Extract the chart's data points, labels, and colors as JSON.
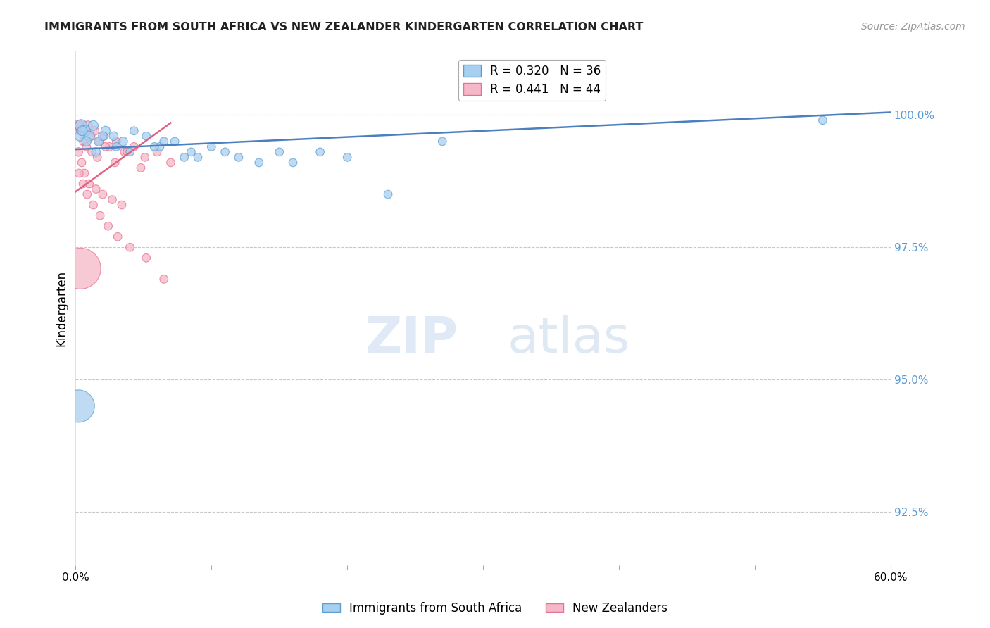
{
  "title": "IMMIGRANTS FROM SOUTH AFRICA VS NEW ZEALANDER KINDERGARTEN CORRELATION CHART",
  "source": "Source: ZipAtlas.com",
  "ylabel": "Kindergarten",
  "ylabel_right_ticks": [
    100.0,
    97.5,
    95.0,
    92.5
  ],
  "ylabel_right_labels": [
    "100.0%",
    "97.5%",
    "95.0%",
    "92.5%"
  ],
  "xmin": 0.0,
  "xmax": 60.0,
  "ymin": 91.5,
  "ymax": 101.2,
  "blue_R": 0.32,
  "blue_N": 36,
  "pink_R": 0.441,
  "pink_N": 44,
  "blue_color": "#a8cff0",
  "pink_color": "#f5b8c8",
  "blue_edge_color": "#5a9fd4",
  "pink_edge_color": "#e87090",
  "blue_line_color": "#4a7fc0",
  "pink_line_color": "#e06080",
  "legend_blue_label": "Immigrants from South Africa",
  "legend_pink_label": "New Zealanders",
  "watermark_zip": "ZIP",
  "watermark_atlas": "atlas",
  "background_color": "#ffffff",
  "grid_color": "#c8c8c8",
  "right_axis_color": "#5b9bd5",
  "xtick_labels": [
    "0.0%",
    "",
    "",
    "",
    "",
    "",
    "60.0%"
  ],
  "blue_scatter_x": [
    0.4,
    0.7,
    1.0,
    1.3,
    1.7,
    2.2,
    2.8,
    3.5,
    4.3,
    5.2,
    6.2,
    7.3,
    8.5,
    10.0,
    12.0,
    15.0,
    16.0,
    18.0,
    20.0,
    23.0,
    27.0,
    55.0,
    1.5,
    5.8,
    9.0,
    13.5,
    0.3,
    0.5,
    0.8,
    2.0,
    3.0,
    4.0,
    6.5,
    8.0,
    11.0,
    0.2
  ],
  "blue_scatter_y": [
    99.8,
    99.7,
    99.6,
    99.8,
    99.5,
    99.7,
    99.6,
    99.5,
    99.7,
    99.6,
    99.4,
    99.5,
    99.3,
    99.4,
    99.2,
    99.3,
    99.1,
    99.3,
    99.2,
    98.5,
    99.5,
    99.9,
    99.3,
    99.4,
    99.2,
    99.1,
    99.6,
    99.7,
    99.5,
    99.6,
    99.4,
    99.3,
    99.5,
    99.2,
    99.3,
    94.5
  ],
  "blue_scatter_s": [
    30,
    25,
    22,
    20,
    18,
    18,
    16,
    16,
    14,
    14,
    14,
    14,
    14,
    14,
    14,
    14,
    14,
    14,
    14,
    14,
    14,
    14,
    16,
    14,
    14,
    14,
    20,
    20,
    18,
    16,
    14,
    14,
    14,
    14,
    14,
    220
  ],
  "pink_scatter_x": [
    0.15,
    0.3,
    0.5,
    0.7,
    0.9,
    1.1,
    1.4,
    1.7,
    2.1,
    2.5,
    3.0,
    3.6,
    4.3,
    5.1,
    6.0,
    7.0,
    0.4,
    0.6,
    0.8,
    1.2,
    1.6,
    2.2,
    2.9,
    3.8,
    4.8,
    0.2,
    0.45,
    0.65,
    1.0,
    1.5,
    2.0,
    2.7,
    3.4,
    0.25,
    0.55,
    0.85,
    1.3,
    1.8,
    2.4,
    3.1,
    4.0,
    5.2,
    0.35,
    6.5
  ],
  "pink_scatter_y": [
    99.8,
    99.8,
    99.7,
    99.7,
    99.8,
    99.6,
    99.7,
    99.5,
    99.6,
    99.4,
    99.5,
    99.3,
    99.4,
    99.2,
    99.3,
    99.1,
    99.7,
    99.5,
    99.4,
    99.3,
    99.2,
    99.4,
    99.1,
    99.3,
    99.0,
    99.3,
    99.1,
    98.9,
    98.7,
    98.6,
    98.5,
    98.4,
    98.3,
    98.9,
    98.7,
    98.5,
    98.3,
    98.1,
    97.9,
    97.7,
    97.5,
    97.3,
    97.1,
    96.9
  ],
  "pink_scatter_s": [
    25,
    22,
    20,
    18,
    18,
    16,
    16,
    14,
    14,
    14,
    14,
    14,
    14,
    14,
    14,
    14,
    18,
    16,
    14,
    14,
    14,
    14,
    14,
    14,
    14,
    16,
    14,
    14,
    14,
    14,
    14,
    14,
    14,
    14,
    14,
    14,
    14,
    14,
    14,
    14,
    14,
    14,
    350,
    14
  ],
  "blue_line_x": [
    0.0,
    60.0
  ],
  "blue_line_y": [
    99.35,
    100.05
  ],
  "pink_line_x": [
    0.0,
    7.0
  ],
  "pink_line_y": [
    98.55,
    99.85
  ]
}
